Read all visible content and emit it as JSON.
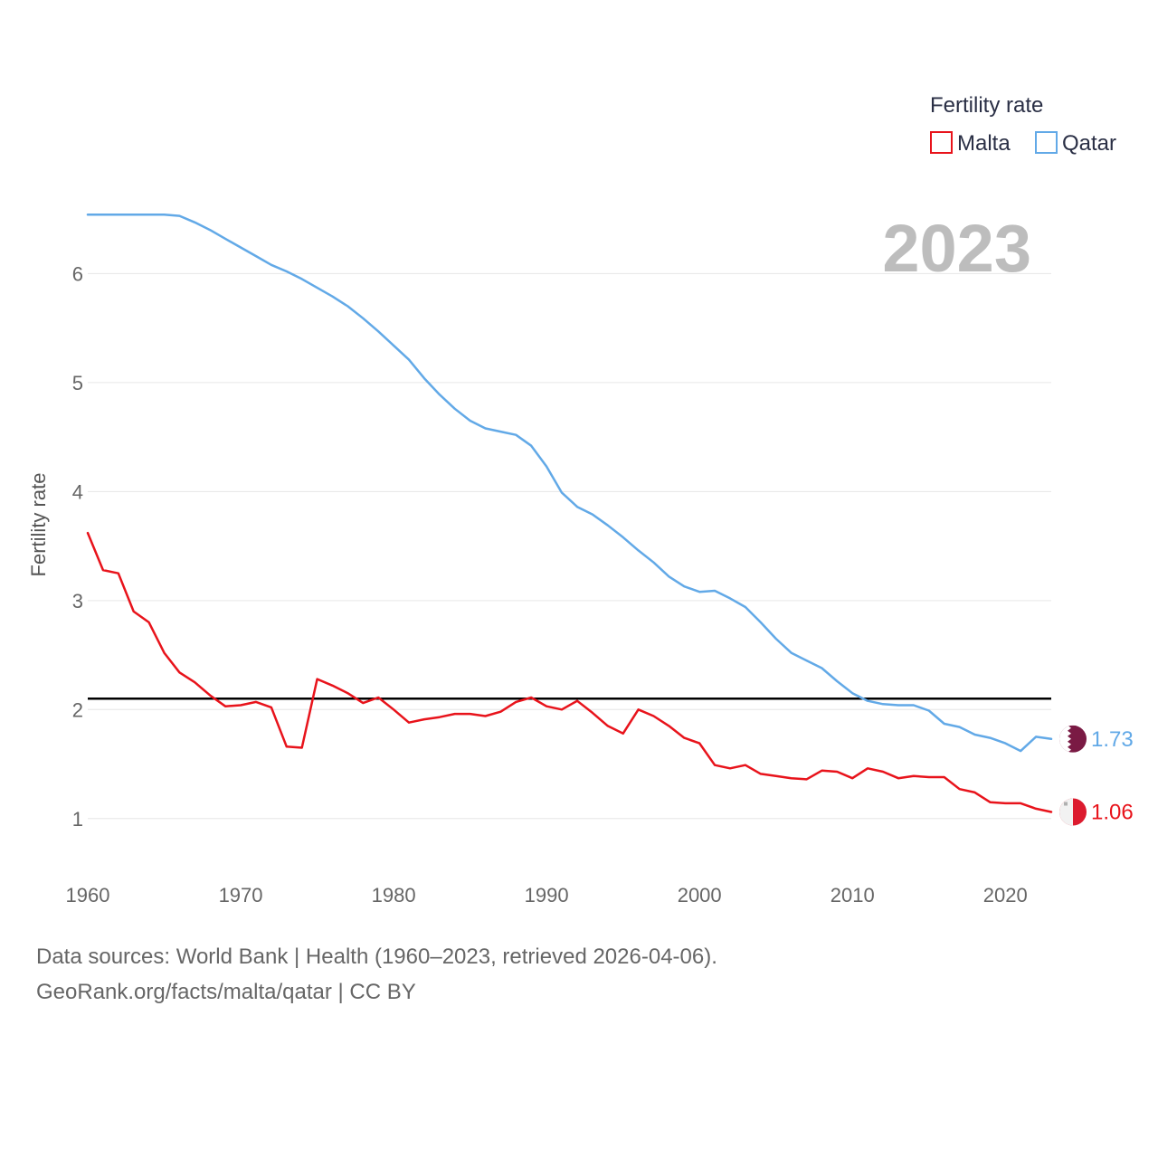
{
  "chart_data": {
    "type": "line",
    "title": "Fertility rate",
    "ylabel": "Fertility rate",
    "xlabel": "",
    "xlim": [
      1960,
      2023
    ],
    "ylim": [
      0.5,
      6.85
    ],
    "x_ticks": [
      1960,
      1970,
      1980,
      1990,
      2000,
      2010,
      2020
    ],
    "y_ticks": [
      1,
      2,
      3,
      4,
      5,
      6
    ],
    "grid": true,
    "legend_position": "top-right",
    "current_year": "2023",
    "reference_line": {
      "value": 2.1,
      "color": "#000000"
    },
    "years": [
      1960,
      1961,
      1962,
      1963,
      1964,
      1965,
      1966,
      1967,
      1968,
      1969,
      1970,
      1971,
      1972,
      1973,
      1974,
      1975,
      1976,
      1977,
      1978,
      1979,
      1980,
      1981,
      1982,
      1983,
      1984,
      1985,
      1986,
      1987,
      1988,
      1989,
      1990,
      1991,
      1992,
      1993,
      1994,
      1995,
      1996,
      1997,
      1998,
      1999,
      2000,
      2001,
      2002,
      2003,
      2004,
      2005,
      2006,
      2007,
      2008,
      2009,
      2010,
      2011,
      2012,
      2013,
      2014,
      2015,
      2016,
      2017,
      2018,
      2019,
      2020,
      2021,
      2022,
      2023
    ],
    "series": [
      {
        "name": "Malta",
        "color": "#e8131b",
        "end_label": "1.06",
        "flag": "malta-flag",
        "values": [
          3.62,
          3.28,
          3.25,
          2.9,
          2.8,
          2.52,
          2.34,
          2.25,
          2.13,
          2.03,
          2.04,
          2.07,
          2.02,
          1.66,
          1.65,
          2.28,
          2.22,
          2.15,
          2.06,
          2.11,
          2.0,
          1.88,
          1.91,
          1.93,
          1.96,
          1.96,
          1.94,
          1.98,
          2.07,
          2.11,
          2.03,
          2.0,
          2.08,
          1.97,
          1.85,
          1.78,
          2.0,
          1.94,
          1.85,
          1.74,
          1.69,
          1.49,
          1.46,
          1.49,
          1.41,
          1.39,
          1.37,
          1.36,
          1.44,
          1.43,
          1.37,
          1.46,
          1.43,
          1.37,
          1.39,
          1.38,
          1.38,
          1.27,
          1.24,
          1.15,
          1.14,
          1.14,
          1.09,
          1.06
        ]
      },
      {
        "name": "Qatar",
        "color": "#62a9e7",
        "end_label": "1.73",
        "flag": "qatar-flag",
        "values": [
          6.54,
          6.54,
          6.54,
          6.54,
          6.54,
          6.54,
          6.53,
          6.47,
          6.4,
          6.32,
          6.24,
          6.16,
          6.08,
          6.02,
          5.95,
          5.87,
          5.79,
          5.7,
          5.59,
          5.47,
          5.34,
          5.21,
          5.04,
          4.89,
          4.76,
          4.65,
          4.58,
          4.55,
          4.52,
          4.42,
          4.23,
          3.99,
          3.86,
          3.79,
          3.69,
          3.58,
          3.46,
          3.35,
          3.22,
          3.13,
          3.08,
          3.09,
          3.02,
          2.94,
          2.8,
          2.65,
          2.52,
          2.45,
          2.38,
          2.26,
          2.15,
          2.08,
          2.05,
          2.04,
          2.04,
          1.99,
          1.87,
          1.84,
          1.77,
          1.74,
          1.69,
          1.62,
          1.75,
          1.73
        ]
      }
    ]
  },
  "footer": {
    "line1": "Data sources: World Bank | Health (1960–2023, retrieved 2026-04-06).",
    "line2": "GeoRank.org/facts/malta/qatar | CC BY"
  }
}
